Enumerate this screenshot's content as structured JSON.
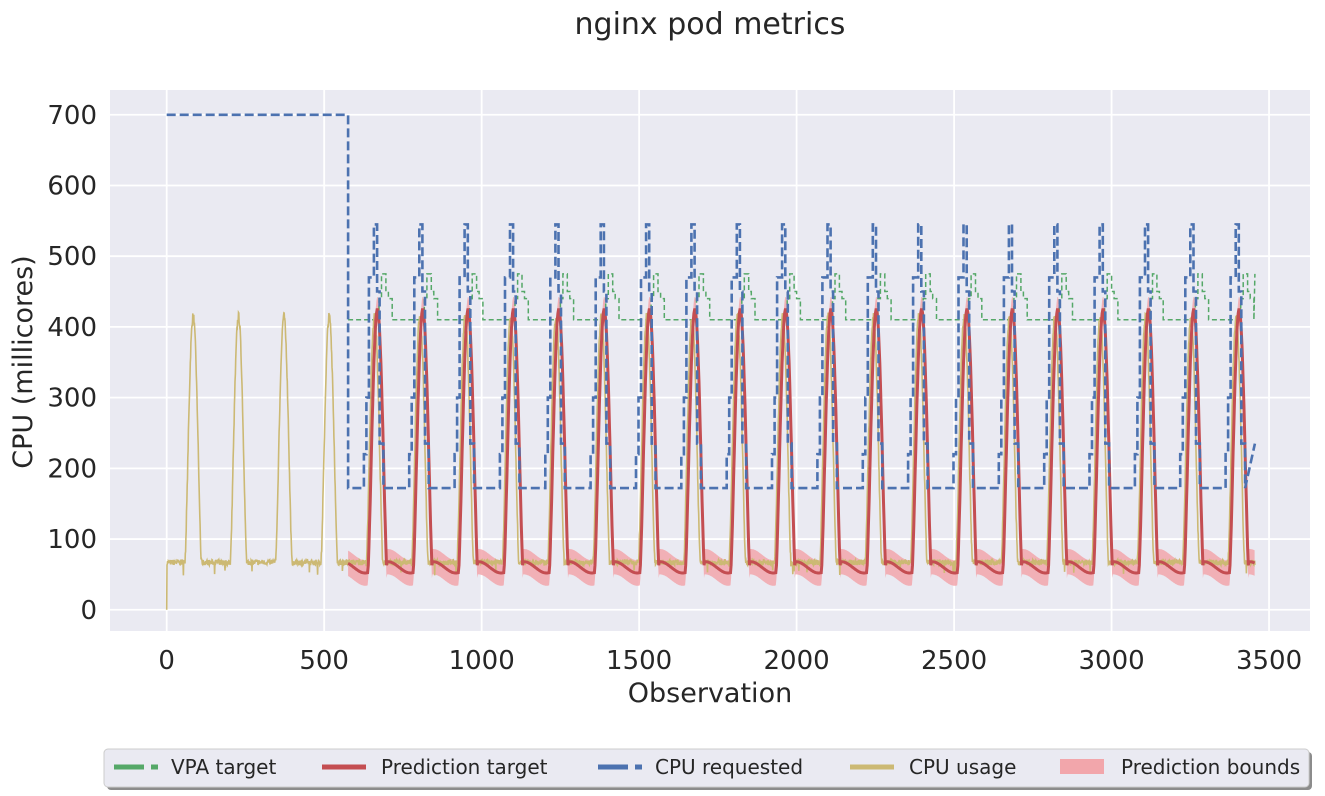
{
  "chart_data": {
    "type": "line",
    "title": "nginx pod metrics",
    "xlabel": "Observation",
    "ylabel": "CPU (millicores)",
    "xlim": [
      -180,
      3630
    ],
    "ylim": [
      -30,
      735
    ],
    "xticks": [
      0,
      500,
      1000,
      1500,
      2000,
      2500,
      3000,
      3500
    ],
    "yticks": [
      0,
      100,
      200,
      300,
      400,
      500,
      600,
      700
    ],
    "grid": true,
    "legend_position": "bottom",
    "period": 144,
    "forecast_start": 576,
    "x_end": 3455,
    "series": [
      {
        "name": "VPA target",
        "key": "vpa",
        "color": "#55a868",
        "style": "dashed",
        "base": 410,
        "steps": [
          410,
          440,
          475,
          450,
          440,
          410
        ],
        "note": "periodic step pattern around 410-475"
      },
      {
        "name": "Prediction target",
        "key": "pred",
        "color": "#c44e52",
        "style": "solid",
        "baseline": 55,
        "peak": 425
      },
      {
        "name": "CPU requested",
        "key": "req",
        "color": "#4c72b0",
        "style": "dashed",
        "initial": 700,
        "steps": [
          172,
          220,
          300,
          470,
          545,
          450,
          235,
          172
        ]
      },
      {
        "name": "CPU usage",
        "key": "usage",
        "color": "#ccb974",
        "style": "solid",
        "baseline": 67,
        "peak": 415
      },
      {
        "name": "Prediction bounds",
        "key": "bounds",
        "color": "#f2a6ab",
        "style": "fill"
      }
    ]
  }
}
